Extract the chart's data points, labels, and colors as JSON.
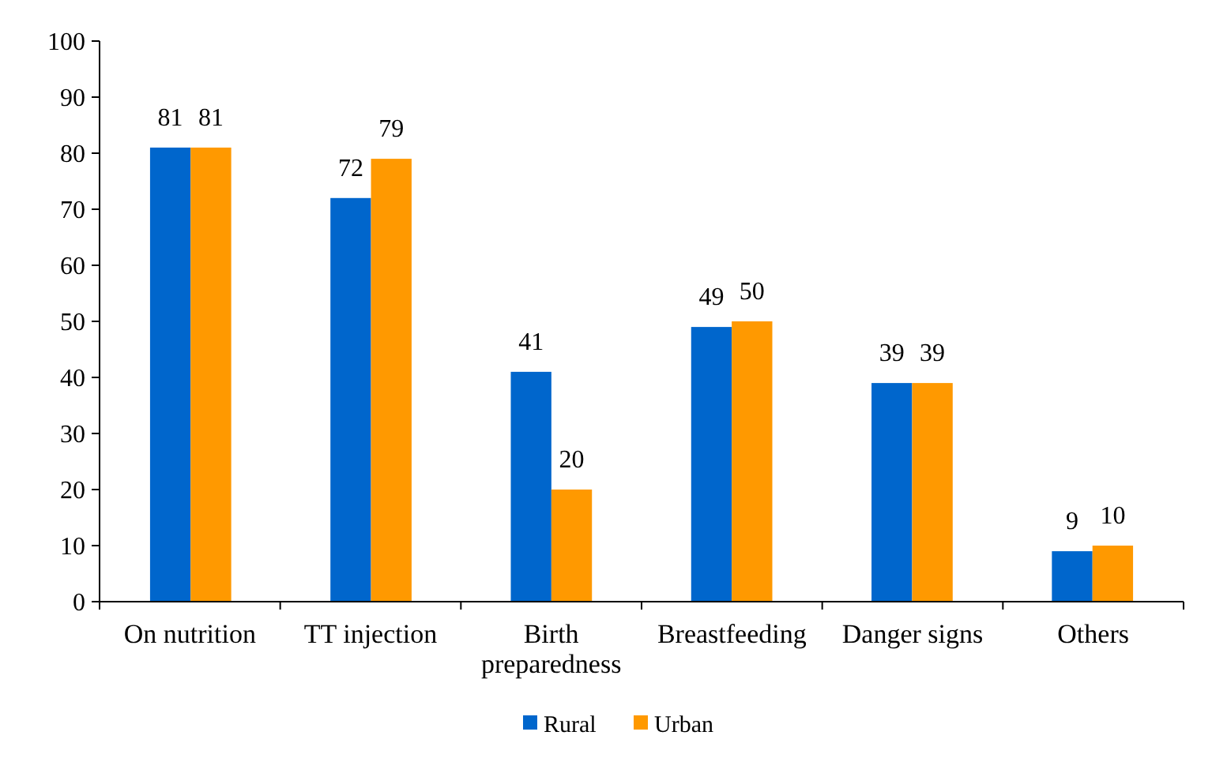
{
  "chart_data": {
    "type": "bar",
    "categories": [
      "On nutrition",
      "TT injection",
      "Birth preparedness",
      "Breastfeeding",
      "Danger signs",
      "Others"
    ],
    "series": [
      {
        "name": "Rural",
        "color": "#0066cc",
        "values": [
          81,
          72,
          41,
          49,
          39,
          9
        ]
      },
      {
        "name": "Urban",
        "color": "#ff9900",
        "values": [
          81,
          79,
          20,
          50,
          39,
          10
        ]
      }
    ],
    "ylim": [
      0,
      100
    ],
    "yticks": [
      0,
      10,
      20,
      30,
      40,
      50,
      60,
      70,
      80,
      90,
      100
    ],
    "data_labels": true,
    "legend": "bottom",
    "grid": false
  }
}
